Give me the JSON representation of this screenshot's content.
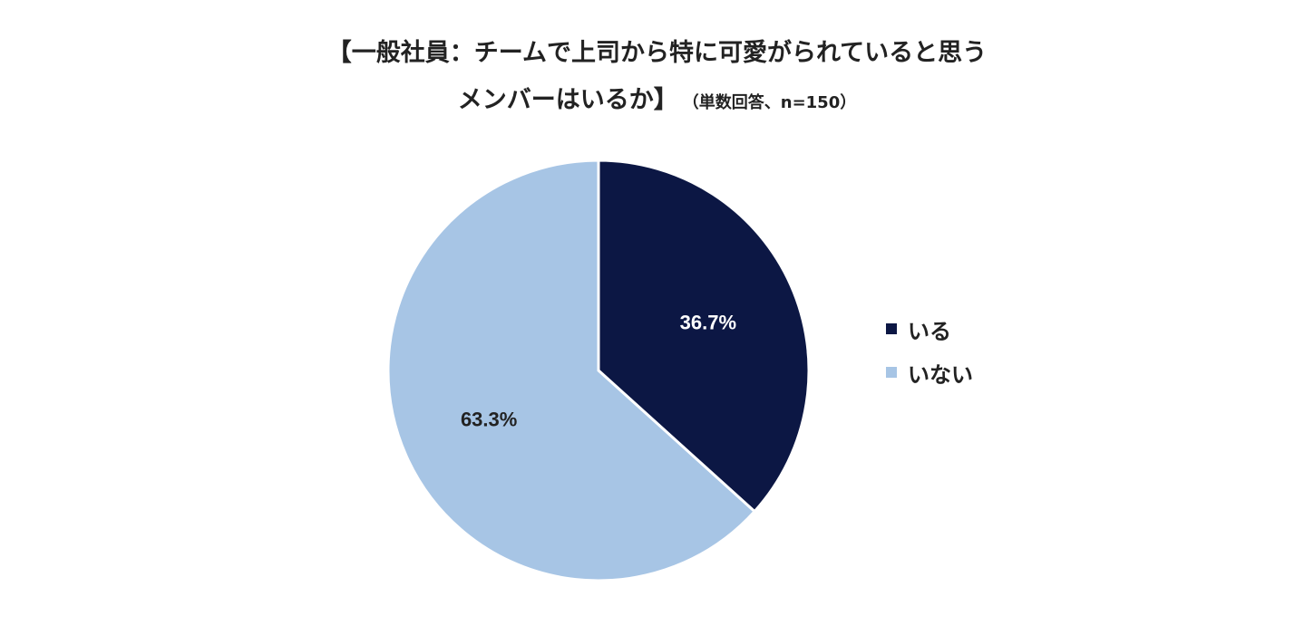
{
  "chart_data": {
    "type": "pie",
    "title_line1": "【一般社員：チームで上司から特に可愛がられていると思う",
    "title_line2": "メンバーはいるか】",
    "subtitle": "（単数回答、n=150）",
    "series": [
      {
        "name": "いる",
        "value": 36.7,
        "label": "36.7%",
        "color": "#0c1744",
        "label_color": "#ffffff"
      },
      {
        "name": "いない",
        "value": 63.3,
        "label": "63.3%",
        "color": "#a7c5e5",
        "label_color": "#222222"
      }
    ],
    "legend_position": "right"
  }
}
